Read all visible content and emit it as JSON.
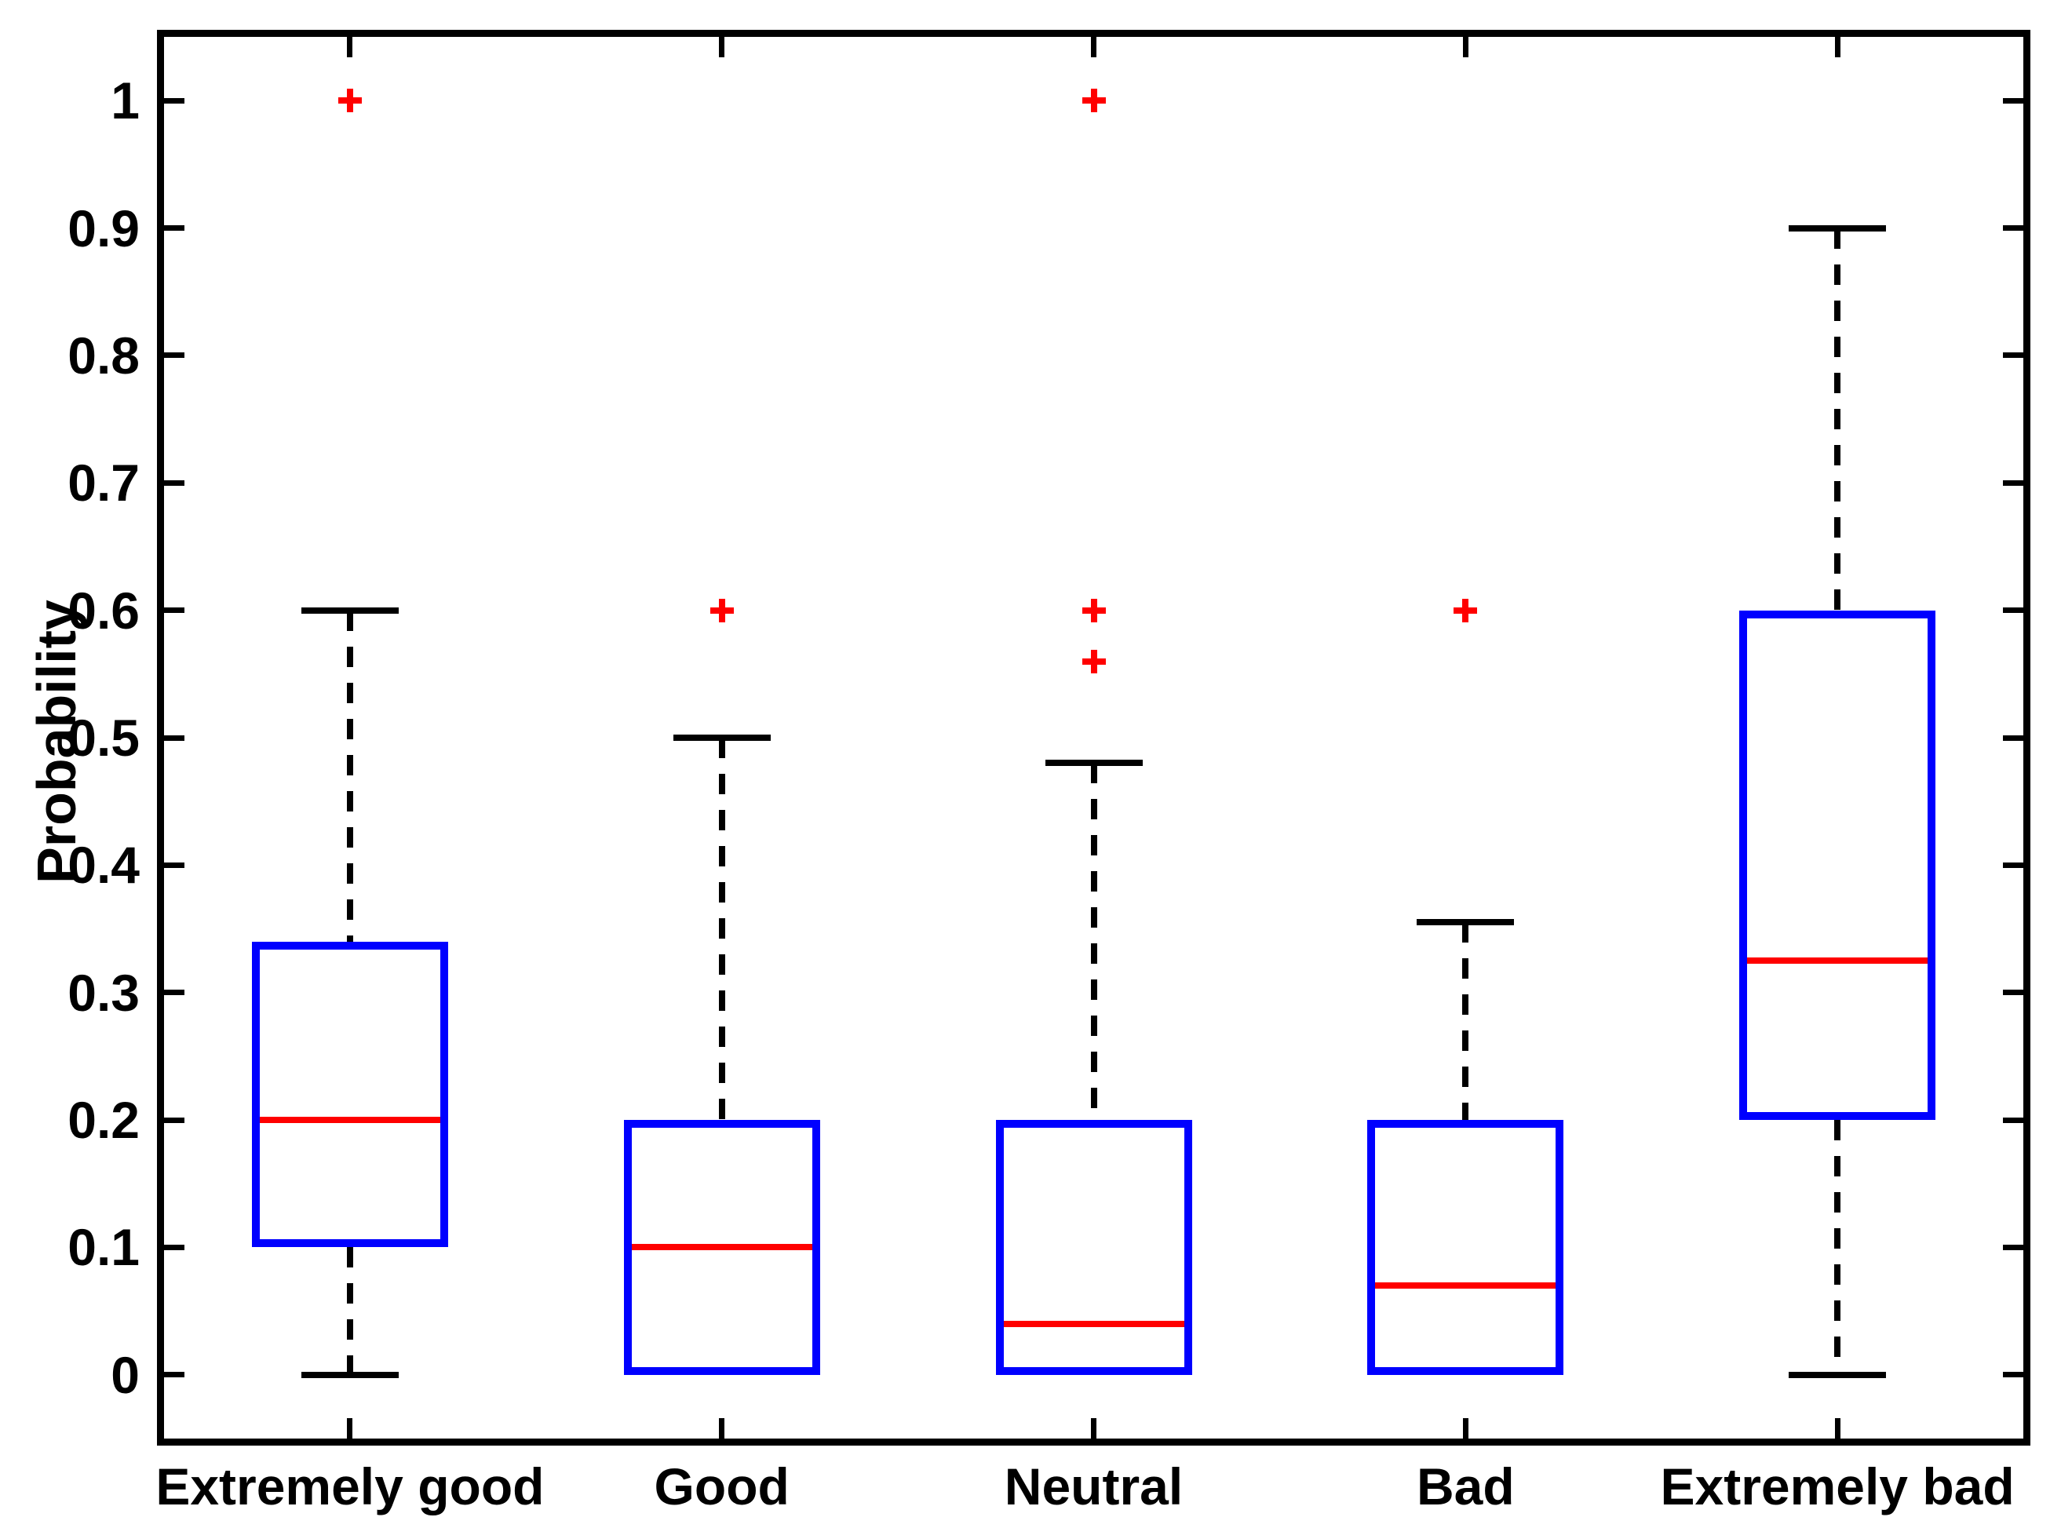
{
  "chart_data": {
    "type": "boxplot",
    "title": "",
    "xlabel": "",
    "ylabel": "Probability",
    "grid": false,
    "ylim": [
      -0.05,
      1.05
    ],
    "yticks": [
      {
        "value": 0,
        "label": "0"
      },
      {
        "value": 0.1,
        "label": "0.1"
      },
      {
        "value": 0.2,
        "label": "0.2"
      },
      {
        "value": 0.3,
        "label": "0.3"
      },
      {
        "value": 0.4,
        "label": "0.4"
      },
      {
        "value": 0.5,
        "label": "0.5"
      },
      {
        "value": 0.6,
        "label": "0.6"
      },
      {
        "value": 0.7,
        "label": "0.7"
      },
      {
        "value": 0.8,
        "label": "0.8"
      },
      {
        "value": 0.9,
        "label": "0.9"
      },
      {
        "value": 1,
        "label": "1"
      }
    ],
    "categories": [
      "Extremely good",
      "Good",
      "Neutral",
      "Bad",
      "Extremely bad"
    ],
    "series": [
      {
        "category": "Extremely good",
        "whisker_low": 0,
        "q1": 0.1,
        "median": 0.2,
        "q3": 0.34,
        "whisker_high": 0.6,
        "outliers": [
          1.0
        ]
      },
      {
        "category": "Good",
        "whisker_low": 0,
        "q1": 0.0,
        "median": 0.1,
        "q3": 0.2,
        "whisker_high": 0.5,
        "outliers": [
          0.6
        ]
      },
      {
        "category": "Neutral",
        "whisker_low": 0,
        "q1": 0.0,
        "median": 0.04,
        "q3": 0.2,
        "whisker_high": 0.48,
        "outliers": [
          0.56,
          0.6,
          1.0
        ]
      },
      {
        "category": "Bad",
        "whisker_low": 0,
        "q1": 0.0,
        "median": 0.07,
        "q3": 0.2,
        "whisker_high": 0.355,
        "outliers": [
          0.6
        ]
      },
      {
        "category": "Extremely bad",
        "whisker_low": 0,
        "q1": 0.2,
        "median": 0.325,
        "q3": 0.6,
        "whisker_high": 0.9,
        "outliers": []
      }
    ],
    "colors": {
      "box_edge": "#0000ff",
      "median": "#ff0000",
      "whisker": "#000000",
      "outlier_marker": "#ff0000",
      "frame": "#000000",
      "background": "#ffffff"
    },
    "outlier_marker": "plus",
    "legend": null
  }
}
